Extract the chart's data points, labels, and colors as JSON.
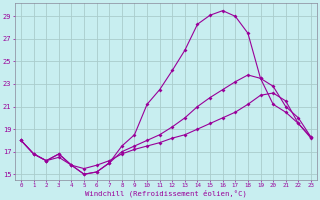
{
  "xlabel": "Windchill (Refroidissement éolien,°C)",
  "bg_color": "#c8eef0",
  "grid_color": "#aacccc",
  "line_color": "#990099",
  "x_ticks": [
    0,
    1,
    2,
    3,
    4,
    5,
    6,
    7,
    8,
    9,
    10,
    11,
    12,
    13,
    14,
    15,
    16,
    17,
    18,
    19,
    20,
    21,
    22,
    23
  ],
  "y_ticks": [
    15,
    17,
    19,
    21,
    23,
    25,
    27,
    29
  ],
  "xlim": [
    -0.5,
    23.5
  ],
  "ylim": [
    14.5,
    30.2
  ],
  "line1_x": [
    0,
    1,
    2,
    3,
    4,
    5,
    6,
    7,
    8,
    9,
    10,
    11,
    12,
    13,
    14,
    15,
    16,
    17,
    18,
    19,
    20,
    21,
    22,
    23
  ],
  "line1_y": [
    18.0,
    16.8,
    16.2,
    16.8,
    15.8,
    15.0,
    15.2,
    16.0,
    17.5,
    18.5,
    21.2,
    22.5,
    24.2,
    26.0,
    28.3,
    29.1,
    29.5,
    29.0,
    27.5,
    23.5,
    21.2,
    20.5,
    19.5,
    18.2
  ],
  "line2_x": [
    0,
    1,
    2,
    3,
    4,
    5,
    6,
    7,
    8,
    9,
    10,
    11,
    12,
    13,
    14,
    15,
    16,
    17,
    18,
    19,
    20,
    21,
    22,
    23
  ],
  "line2_y": [
    18.0,
    16.8,
    16.2,
    16.8,
    15.8,
    15.0,
    15.2,
    16.0,
    17.0,
    17.5,
    18.0,
    18.5,
    19.2,
    20.0,
    21.0,
    21.8,
    22.5,
    23.2,
    23.8,
    23.5,
    22.8,
    21.0,
    20.0,
    18.3
  ],
  "line3_x": [
    0,
    1,
    2,
    3,
    4,
    5,
    6,
    7,
    8,
    9,
    10,
    11,
    12,
    13,
    14,
    15,
    16,
    17,
    18,
    19,
    20,
    21,
    22,
    23
  ],
  "line3_y": [
    18.0,
    16.8,
    16.2,
    16.5,
    15.8,
    15.5,
    15.8,
    16.2,
    16.8,
    17.2,
    17.5,
    17.8,
    18.2,
    18.5,
    19.0,
    19.5,
    20.0,
    20.5,
    21.2,
    22.0,
    22.2,
    21.5,
    19.5,
    18.3
  ]
}
